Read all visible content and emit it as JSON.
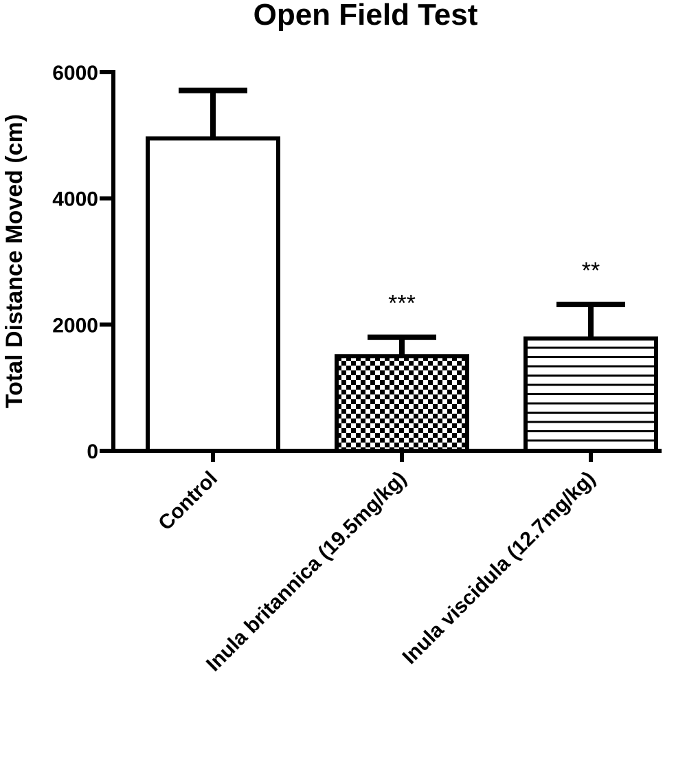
{
  "chart_data": {
    "type": "bar",
    "title": "Open Field Test",
    "ylabel": "Total Distance Moved (cm)",
    "xlabel": "",
    "ylim": [
      0,
      6000
    ],
    "yticks": [
      0,
      2000,
      4000,
      6000
    ],
    "yticklabels": [
      "0",
      "2000",
      "4000",
      "6000"
    ],
    "categories": [
      "Control",
      "Inula britannica (19.5mg/kg)",
      "Inula viscidula (12.7mg/kg)"
    ],
    "values": [
      4950,
      1500,
      1780
    ],
    "errors": [
      760,
      300,
      540
    ],
    "annotations": [
      "",
      "***",
      "**"
    ],
    "fills": [
      "solid-white",
      "checkerboard",
      "horizontal-lines"
    ],
    "colors": {
      "stroke": "#000000",
      "fill": "#ffffff"
    }
  }
}
